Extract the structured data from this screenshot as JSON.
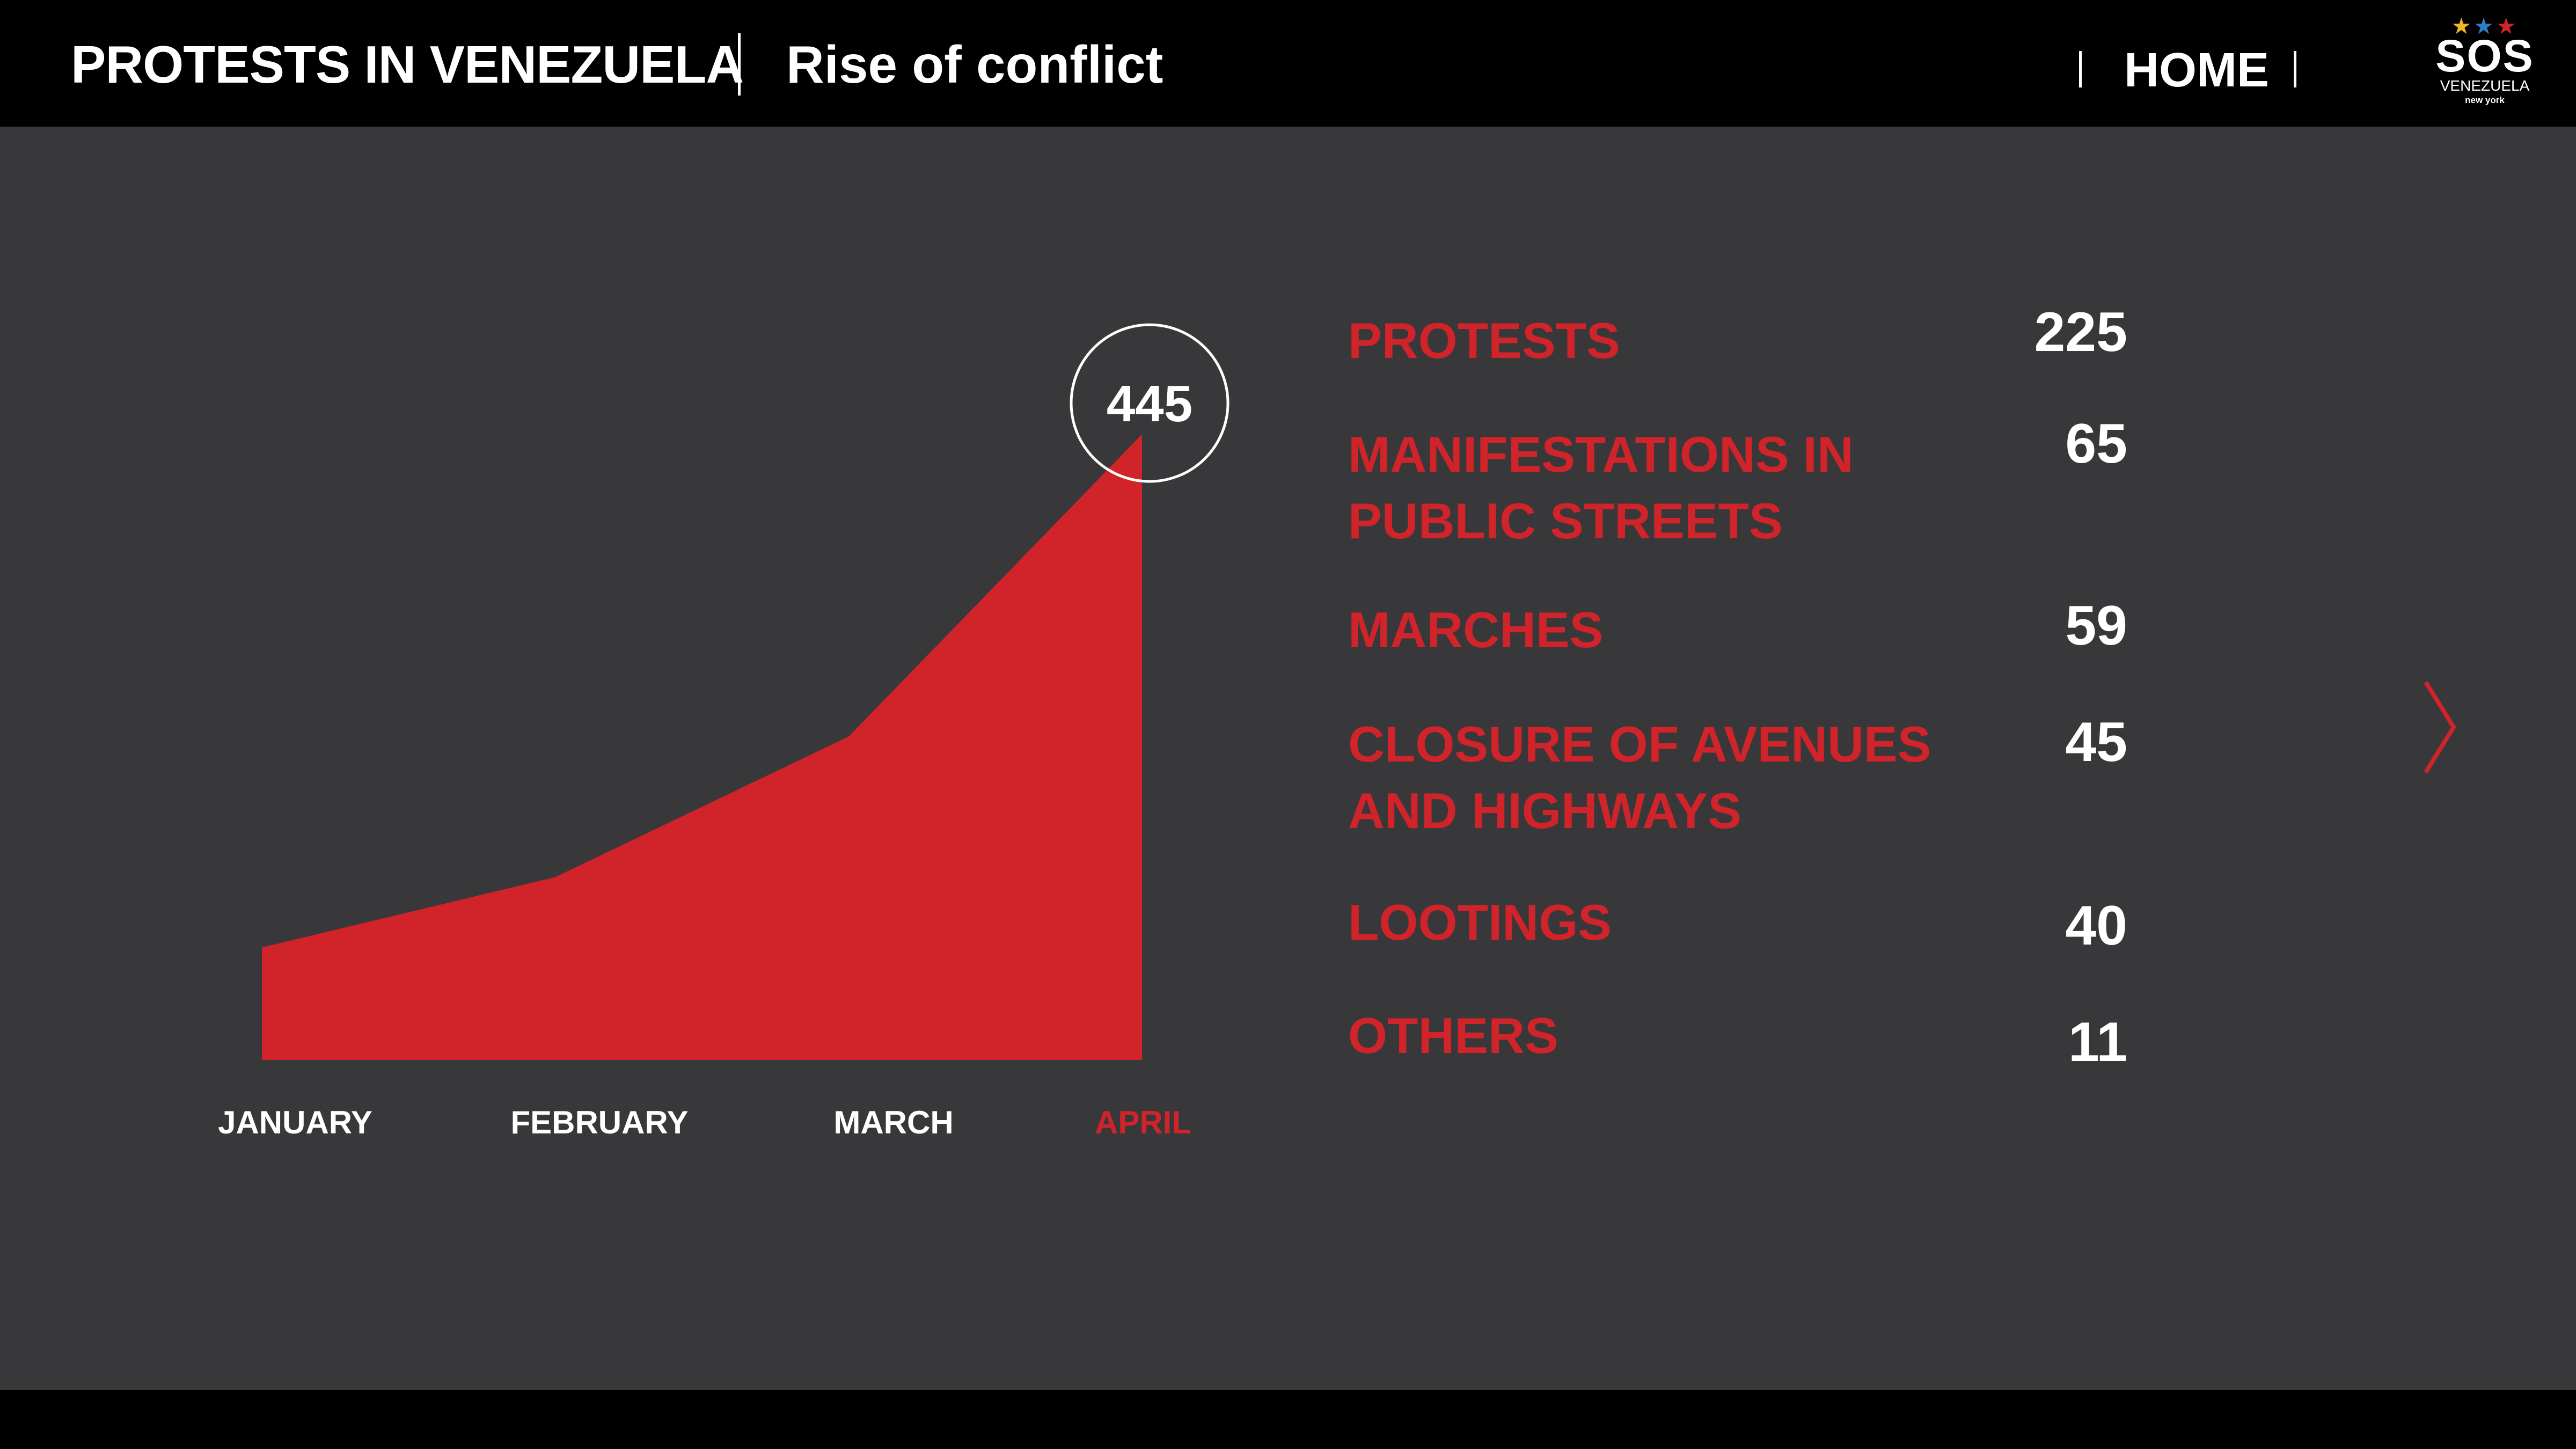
{
  "header": {
    "title": "PROTESTS IN VENEZUELA",
    "subtitle": "Rise of conflict",
    "home_label": "HOME"
  },
  "logo": {
    "stars": "★★★",
    "star_colors": [
      "#f2b522",
      "#2e7fc2",
      "#d0232a"
    ],
    "name": "SOS",
    "country": "VENEZUELA",
    "city": "new york"
  },
  "colors": {
    "accent": "#d0232a",
    "background": "#38383a",
    "bar": "#000000",
    "text": "#ffffff"
  },
  "chart_data": {
    "type": "area",
    "categories": [
      "JANUARY",
      "FEBRUARY",
      "MARCH",
      "APRIL"
    ],
    "values": [
      80,
      130,
      230,
      445
    ],
    "highlight_index": 3,
    "highlight_label": "445",
    "ylim": [
      0,
      500
    ],
    "grid": false
  },
  "stats": [
    {
      "label_lines": [
        "PROTESTS"
      ],
      "value": "225"
    },
    {
      "label_lines": [
        "MANIFESTATIONS IN",
        "PUBLIC STREETS"
      ],
      "value": "65"
    },
    {
      "label_lines": [
        "MARCHES"
      ],
      "value": "59"
    },
    {
      "label_lines": [
        "CLOSURE OF AVENUES",
        "AND HIGHWAYS"
      ],
      "value": "45"
    },
    {
      "label_lines": [
        "LOOTINGS"
      ],
      "value": "40"
    },
    {
      "label_lines": [
        "OTHERS"
      ],
      "value": "11"
    }
  ],
  "icons": {
    "next": "chevron-right-icon"
  }
}
